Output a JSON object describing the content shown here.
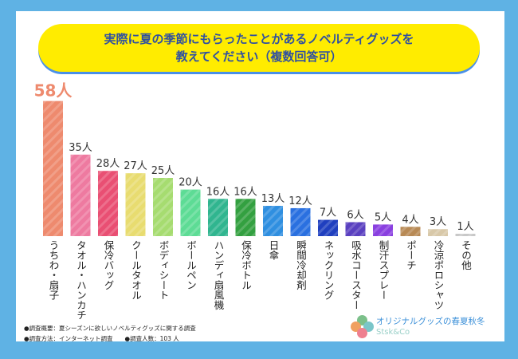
{
  "title_lines": [
    "実際に夏の季節にもらったことがあるノベルティグッズを",
    "教えてください（複数回答可）"
  ],
  "chart_data": {
    "type": "bar",
    "categories": [
      "うちわ・扇子",
      "タオル・ハンカチ",
      "保冷バッグ",
      "クールタオル",
      "ボディシート",
      "ボールペン",
      "ハンディ扇風機",
      "保冷ボトル",
      "日傘",
      "瞬間冷却剤",
      "ネックリング",
      "吸水コースター",
      "制汗スプレー",
      "ポーチ",
      "冷涼ポロシャツ",
      "その他"
    ],
    "values": [
      58,
      35,
      28,
      27,
      25,
      20,
      16,
      16,
      13,
      12,
      7,
      6,
      5,
      4,
      3,
      1
    ],
    "unit": "人",
    "colors": [
      "#ee8a6e",
      "#ee7aa0",
      "#e94f73",
      "#e8dc70",
      "#a6dc70",
      "#5ddc95",
      "#30b58f",
      "#33a040",
      "#2f8fe0",
      "#2a70e0",
      "#1f3fbf",
      "#5a40c0",
      "#8a40e0",
      "#b88a55",
      "#d8c8a8",
      "#c8c8c8"
    ],
    "highlight_color": "#ee8a6e",
    "grid": false
  },
  "notes": [
    "●調査概要：夏シーズンに欲しいノベルティグッズに関する調査",
    "●調査方法：インターネット調査　　●調査人数：103 人"
  ],
  "logo": {
    "text": "オリジナルグッズの春夏秋冬",
    "sub": "Stsk&Co"
  }
}
